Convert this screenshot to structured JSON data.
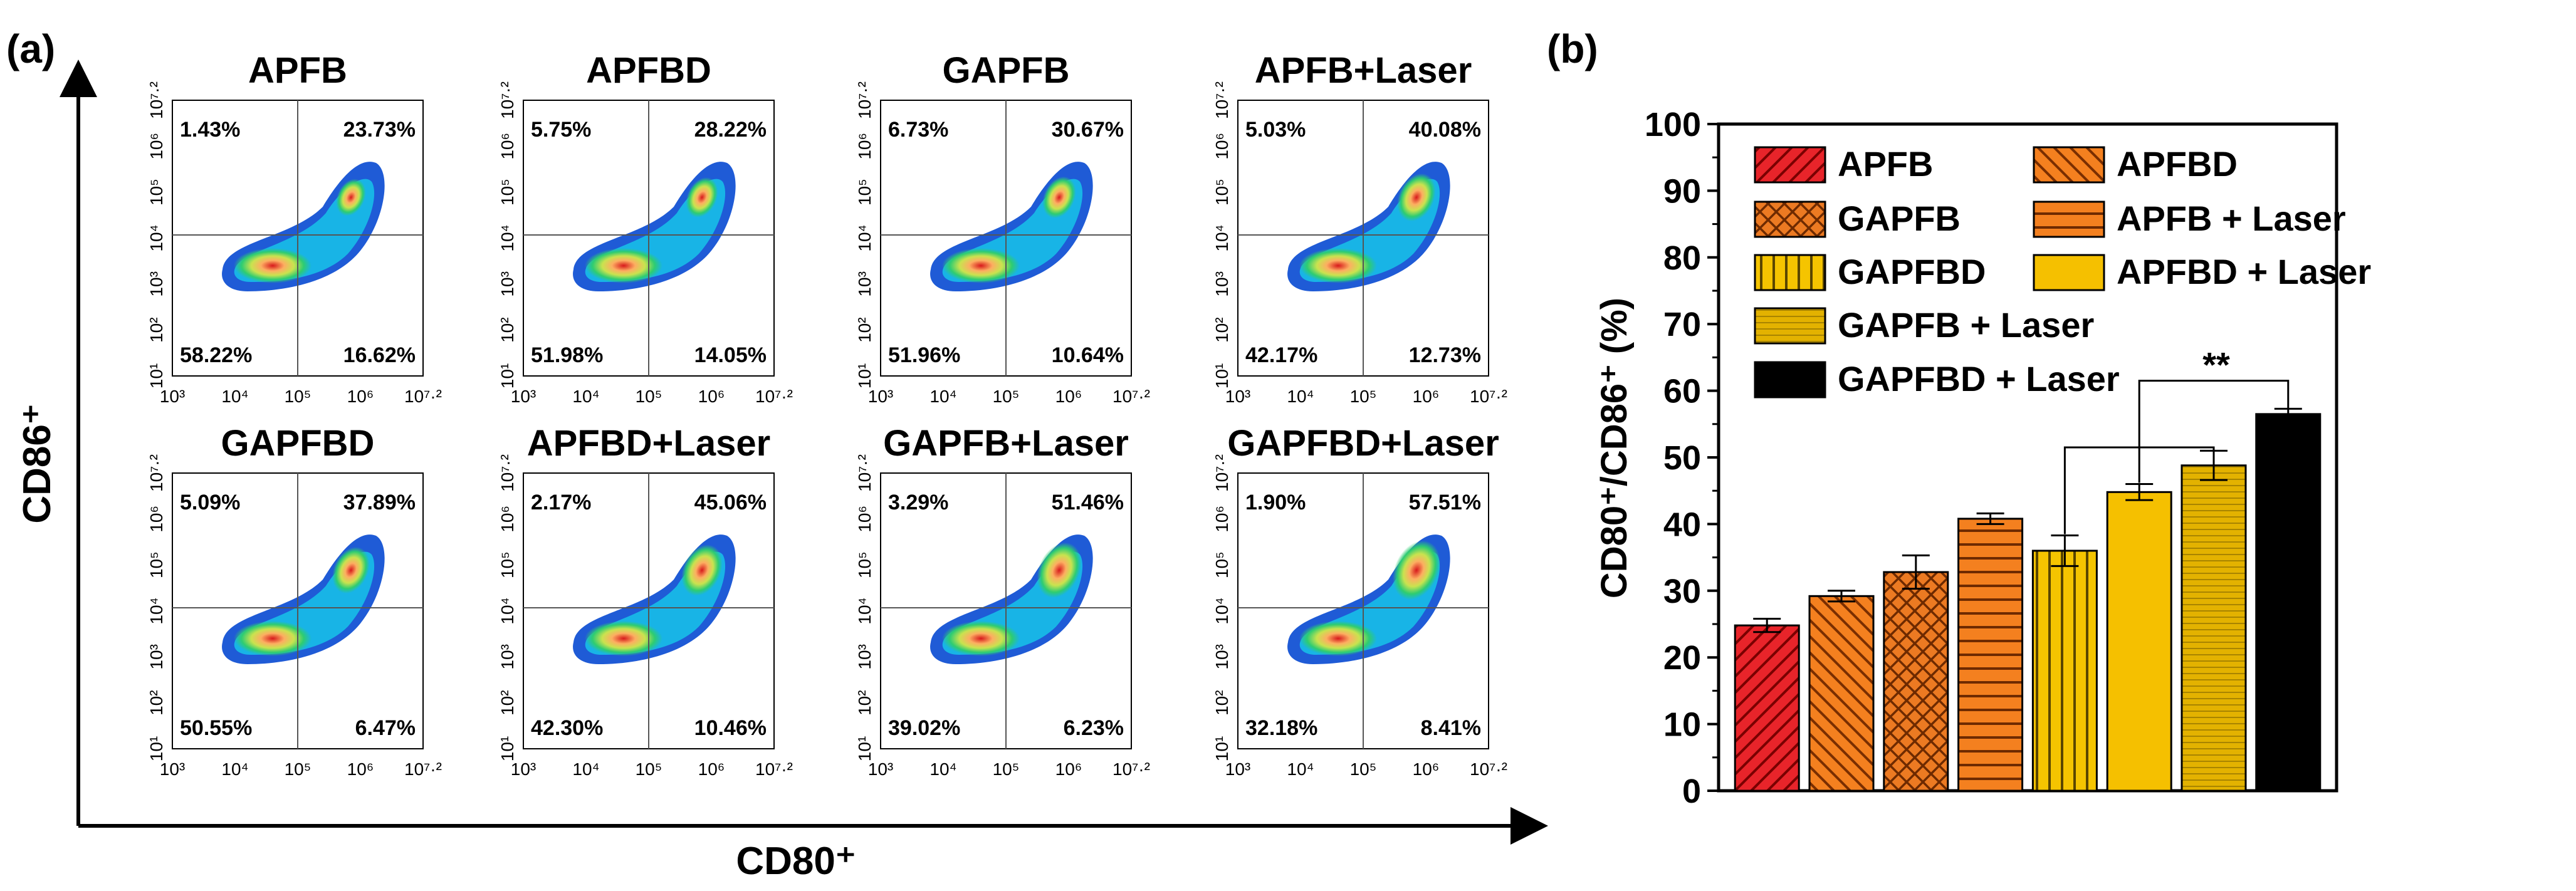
{
  "panel_a_label": "(a)",
  "panel_b_label": "(b)",
  "flow": {
    "y_axis_label": "CD86⁺",
    "x_axis_label": "CD80⁺",
    "x_ticks": [
      "10³",
      "10⁴",
      "10⁵",
      "10⁶",
      "10⁷·²"
    ],
    "y_ticks": [
      "10¹",
      "10²",
      "10³",
      "10⁴",
      "10⁵",
      "10⁶",
      "10⁷·²"
    ],
    "plots": [
      {
        "title": "APFB",
        "ul": "1.43%",
        "ur": "23.73%",
        "ll": "58.22%",
        "lr": "16.62%"
      },
      {
        "title": "APFBD",
        "ul": "5.75%",
        "ur": "28.22%",
        "ll": "51.98%",
        "lr": "14.05%"
      },
      {
        "title": "GAPFB",
        "ul": "6.73%",
        "ur": "30.67%",
        "ll": "51.96%",
        "lr": "10.64%"
      },
      {
        "title": "APFB+Laser",
        "ul": "5.03%",
        "ur": "40.08%",
        "ll": "42.17%",
        "lr": "12.73%"
      },
      {
        "title": "GAPFBD",
        "ul": "5.09%",
        "ur": "37.89%",
        "ll": "50.55%",
        "lr": "6.47%"
      },
      {
        "title": "APFBD+Laser",
        "ul": "2.17%",
        "ur": "45.06%",
        "ll": "42.30%",
        "lr": "10.46%"
      },
      {
        "title": "GAPFB+Laser",
        "ul": "3.29%",
        "ur": "51.46%",
        "ll": "39.02%",
        "lr": "6.23%"
      },
      {
        "title": "GAPFBD+Laser",
        "ul": "1.90%",
        "ur": "57.51%",
        "ll": "32.18%",
        "lr": "8.41%"
      }
    ]
  },
  "chart_data": {
    "type": "bar",
    "title": "",
    "xlabel": "",
    "ylabel": "CD80⁺/CD86⁺ (%)",
    "ylim": [
      0,
      100
    ],
    "yticks": [
      0,
      10,
      20,
      30,
      40,
      50,
      60,
      70,
      80,
      90,
      100
    ],
    "categories": [
      "APFB",
      "APFBD",
      "GAPFB",
      "APFB + Laser",
      "GAPFBD",
      "APFBD + Laser",
      "GAPFB + Laser",
      "GAPFBD + Laser"
    ],
    "values": [
      24.8,
      29.2,
      32.8,
      40.8,
      36.0,
      44.8,
      48.8,
      56.5
    ],
    "errors": [
      1.0,
      0.8,
      2.5,
      0.8,
      2.3,
      1.2,
      2.2,
      0.8
    ],
    "colors": [
      "#e8242a",
      "#f4801f",
      "#ec7a22",
      "#f4801f",
      "#f5c400",
      "#f5c000",
      "#e3b200",
      "#000000"
    ],
    "patterns": [
      "diag-up",
      "diag-down",
      "crosshatch",
      "horizontal",
      "vertical",
      "solid",
      "fine-horizontal",
      "solid"
    ],
    "legend": [
      "APFB",
      "APFBD",
      "GAPFB",
      "APFB + Laser",
      "GAPFBD",
      "APFBD + Laser",
      "GAPFB + Laser",
      "GAPFBD + Laser"
    ],
    "significance": "**"
  }
}
